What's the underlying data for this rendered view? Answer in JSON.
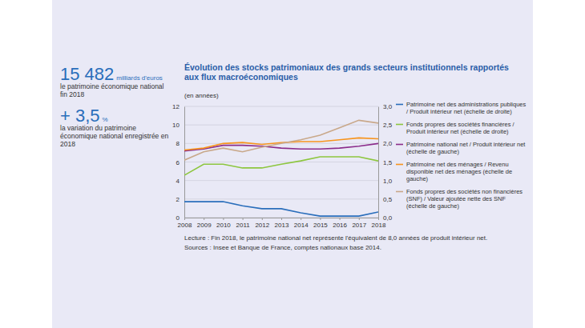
{
  "chart_data": {
    "type": "line",
    "title": "Évolution des stocks patrimoniaux des grands secteurs institutionnels rapportés aux flux macroéconomiques",
    "subtitle": "(en années)",
    "highlights": [
      {
        "value": "15 482",
        "unit": "milliards d'euros",
        "text": "le patrimoine économique national fin 2018"
      },
      {
        "value": "+ 3,5",
        "unit": "%",
        "text": "la variation du patrimoine économique national enregistrée en 2018"
      }
    ],
    "notes": [
      "Lecture : Fin 2018, le patrimoine national net représente l'équivalent de 8,0 années de produit intérieur net.",
      "Sources : Insee et Banque de France, comptes nationaux base 2014."
    ],
    "x": [
      2008,
      2009,
      2010,
      2011,
      2012,
      2013,
      2014,
      2015,
      2016,
      2017,
      2018
    ],
    "xlim": [
      2008,
      2018
    ],
    "xticks": [
      2008,
      2009,
      2010,
      2011,
      2012,
      2013,
      2014,
      2015,
      2016,
      2017,
      2018
    ],
    "ylim": [
      0,
      12
    ],
    "yticks": [
      0,
      2,
      4,
      6,
      8,
      10,
      12
    ],
    "y2lim": [
      0,
      3
    ],
    "y2ticks": [
      {
        "value": 0,
        "label": "0,0"
      },
      {
        "value": 0.5,
        "label": "0,5"
      },
      {
        "value": 1,
        "label": "1,0"
      },
      {
        "value": 1.5,
        "label": "1,5"
      },
      {
        "value": 2,
        "label": "2,0"
      },
      {
        "value": 2.5,
        "label": "2,5"
      },
      {
        "value": 3,
        "label": "3,0"
      }
    ],
    "grid": true,
    "legend": "right",
    "series": [
      {
        "name": "Patrimoine net des administrations publiques / Produit intérieur net (échelle de droite)",
        "color": "#2a6ebb",
        "axis": "y2",
        "values": [
          0.43,
          0.43,
          0.43,
          0.32,
          0.24,
          0.24,
          0.13,
          0.04,
          0.04,
          0.04,
          0.15
        ]
      },
      {
        "name": "Fonds propres des sociétés financières / Produit intérieur net (échelle de droite)",
        "color": "#8dc63f",
        "axis": "y2",
        "values": [
          1.14,
          1.44,
          1.44,
          1.34,
          1.34,
          1.44,
          1.53,
          1.64,
          1.64,
          1.64,
          1.53
        ]
      },
      {
        "name": "Patrimoine national net / Produit intérieur net (échelle de gauche)",
        "color": "#8b2d8b",
        "values": [
          7.2,
          7.4,
          7.8,
          7.8,
          7.7,
          7.5,
          7.4,
          7.4,
          7.5,
          7.7,
          8.0
        ]
      },
      {
        "name": "Patrimoine net des ménages / Revenu disponible net des ménages (échelle de gauche)",
        "color": "#f7941d",
        "values": [
          7.3,
          7.5,
          8.0,
          8.1,
          7.9,
          8.1,
          8.2,
          8.2,
          8.4,
          8.6,
          8.5
        ]
      },
      {
        "name": "Fonds propres des sociétés non financières (SNF) / Valeur ajoutée nette des SNF (échelle de gauche)",
        "color": "#c9a88a",
        "values": [
          6.2,
          7.1,
          7.5,
          7.1,
          7.6,
          8.0,
          8.4,
          8.9,
          9.7,
          10.5,
          10.2
        ]
      }
    ]
  }
}
